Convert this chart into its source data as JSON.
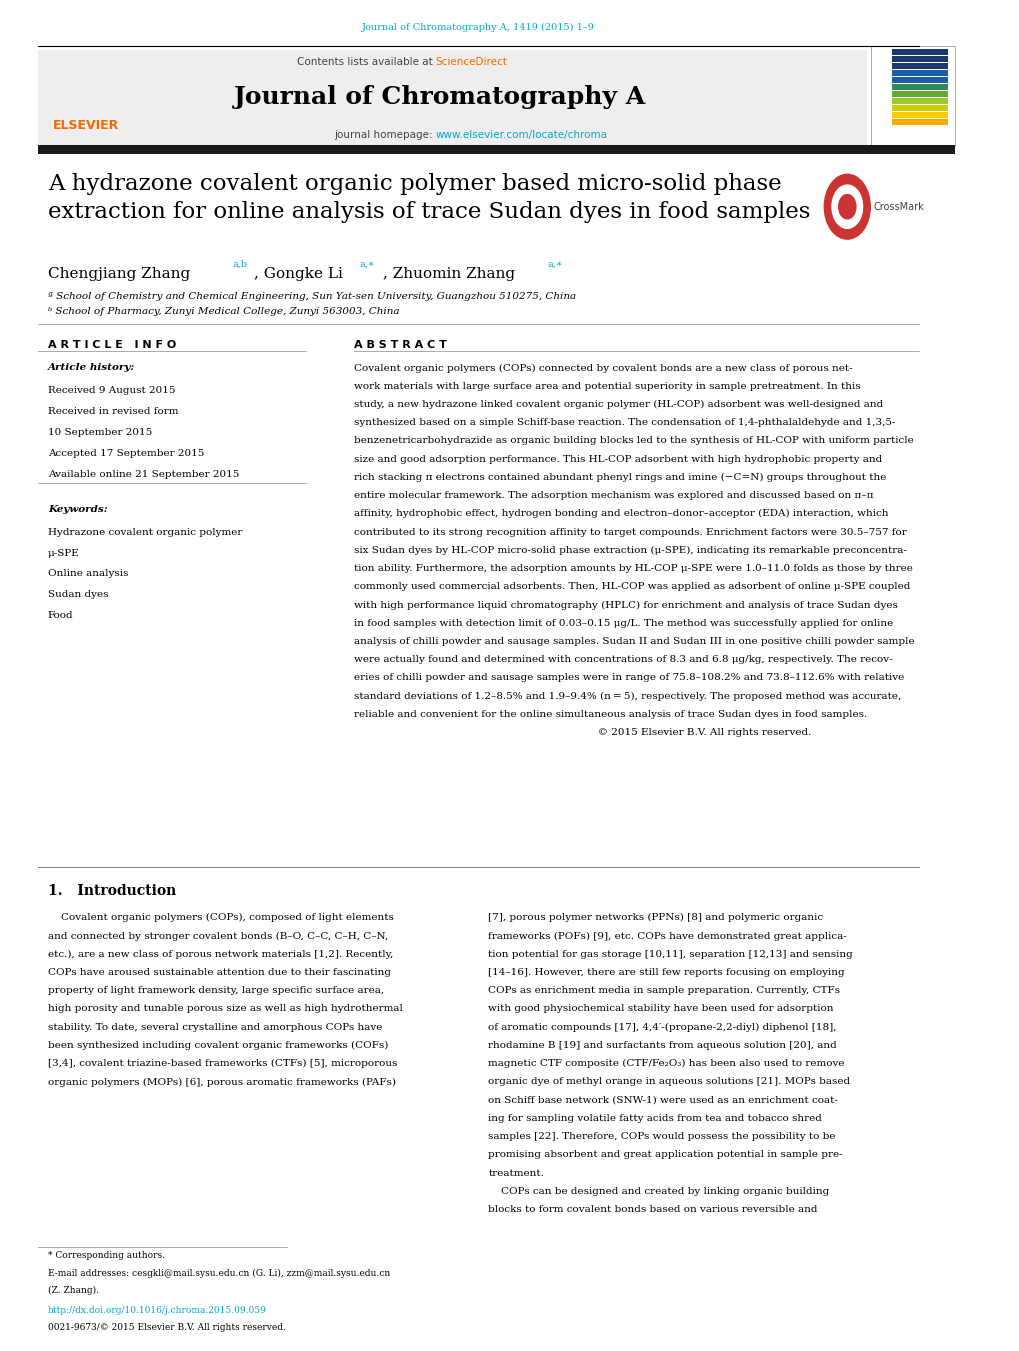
{
  "page_width": 10.2,
  "page_height": 13.51,
  "background_color": "#ffffff",
  "top_journal_ref": "Journal of Chromatography A, 1419 (2015) 1–9",
  "top_journal_ref_color": "#00aacc",
  "journal_name": "Journal of Chromatography A",
  "journal_homepage_url": "www.elsevier.com/locate/chroma",
  "journal_homepage_url_color": "#00aacc",
  "article_title": "A hydrazone covalent organic polymer based micro-solid phase\nextraction for online analysis of trace Sudan dyes in food samples",
  "affil_a": "ª School of Chemistry and Chemical Engineering, Sun Yat-sen University, Guangzhou 510275, China",
  "affil_b": "ᵇ School of Pharmacy, Zunyi Medical College, Zunyi 563003, China",
  "article_info_header": "A R T I C L E   I N F O",
  "abstract_header": "A B S T R A C T",
  "article_history_label": "Article history:",
  "received1": "Received 9 August 2015",
  "received2": "Received in revised form",
  "received2b": "10 September 2015",
  "accepted": "Accepted 17 September 2015",
  "available": "Available online 21 September 2015",
  "keywords_label": "Keywords:",
  "keyword1": "Hydrazone covalent organic polymer",
  "keyword2": "μ-SPE",
  "keyword3": "Online analysis",
  "keyword4": "Sudan dyes",
  "keyword5": "Food",
  "abstract_text": "Covalent organic polymers (COPs) connected by covalent bonds are a new class of porous net-\nwork materials with large surface area and potential superiority in sample pretreatment. In this\nstudy, a new hydrazone linked covalent organic polymer (HL-COP) adsorbent was well-designed and\nsynthesized based on a simple Schiff-base reaction. The condensation of 1,4-phthalaldehyde and 1,3,5-\nbenzenetricarbohydrazide as organic building blocks led to the synthesis of HL-COP with uniform particle\nsize and good adsorption performance. This HL-COP adsorbent with high hydrophobic property and\nrich stacking π electrons contained abundant phenyl rings and imine (−C=N) groups throughout the\nentire molecular framework. The adsorption mechanism was explored and discussed based on π–π\naffinity, hydrophobic effect, hydrogen bonding and electron–donor–acceptor (EDA) interaction, which\ncontributed to its strong recognition affinity to target compounds. Enrichment factors were 30.5–757 for\nsix Sudan dyes by HL-COP micro-solid phase extraction (μ-SPE), indicating its remarkable preconcentra-\ntion ability. Furthermore, the adsorption amounts by HL-COP μ-SPE were 1.0–11.0 folds as those by three\ncommonly used commercial adsorbents. Then, HL-COP was applied as adsorbent of online μ-SPE coupled\nwith high performance liquid chromatography (HPLC) for enrichment and analysis of trace Sudan dyes\nin food samples with detection limit of 0.03–0.15 μg/L. The method was successfully applied for online\nanalysis of chilli powder and sausage samples. Sudan II and Sudan III in one positive chilli powder sample\nwere actually found and determined with concentrations of 8.3 and 6.8 μg/kg, respectively. The recov-\neries of chilli powder and sausage samples were in range of 75.8–108.2% and 73.8–112.6% with relative\nstandard deviations of 1.2–8.5% and 1.9–9.4% (n = 5), respectively. The proposed method was accurate,\nreliable and convenient for the online simultaneous analysis of trace Sudan dyes in food samples.\n                                                                           © 2015 Elsevier B.V. All rights reserved.",
  "intro_header": "1.   Introduction",
  "intro_col1_lines": [
    "    Covalent organic polymers (COPs), composed of light elements",
    "and connected by stronger covalent bonds (B–O, C–C, C–H, C–N,",
    "etc.), are a new class of porous network materials [1,2]. Recently,",
    "COPs have aroused sustainable attention due to their fascinating",
    "property of light framework density, large specific surface area,",
    "high porosity and tunable porous size as well as high hydrothermal",
    "stability. To date, several crystalline and amorphous COPs have",
    "been synthesized including covalent organic frameworks (COFs)",
    "[3,4], covalent triazine-based frameworks (CTFs) [5], microporous",
    "organic polymers (MOPs) [6], porous aromatic frameworks (PAFs)"
  ],
  "intro_col2_lines": [
    "[7], porous polymer networks (PPNs) [8] and polymeric organic",
    "frameworks (POFs) [9], etc. COPs have demonstrated great applica-",
    "tion potential for gas storage [10,11], separation [12,13] and sensing",
    "[14–16]. However, there are still few reports focusing on employing",
    "COPs as enrichment media in sample preparation. Currently, CTFs",
    "with good physiochemical stability have been used for adsorption",
    "of aromatic compounds [17], 4,4′-(propane-2,2-diyl) diphenol [18],",
    "rhodamine B [19] and surfactants from aqueous solution [20], and",
    "magnetic CTF composite (CTF/Fe₂O₃) has been also used to remove",
    "organic dye of methyl orange in aqueous solutions [21]. MOPs based",
    "on Schiff base network (SNW-1) were used as an enrichment coat-",
    "ing for sampling volatile fatty acids from tea and tobacco shred",
    "samples [22]. Therefore, COPs would possess the possibility to be",
    "promising absorbent and great application potential in sample pre-",
    "treatment.",
    "    COPs can be designed and created by linking organic building",
    "blocks to form covalent bonds based on various reversible and"
  ],
  "footer_corresp": "* Corresponding authors.",
  "footer_email": "E-mail addresses: cesgkli@mail.sysu.edu.cn (G. Li), zzm@mail.sysu.edu.cn",
  "footer_email2": "(Z. Zhang).",
  "footer_doi": "http://dx.doi.org/10.1016/j.chroma.2015.09.059",
  "footer_issn": "0021-9673/© 2015 Elsevier B.V. All rights reserved.",
  "link_color": "#00aacc",
  "elsevier_orange": "#ff6600",
  "science_direct_color": "#ff6600",
  "bar_colors_cover": [
    "#1a3a6b",
    "#1a3a6b",
    "#1a3a6b",
    "#1a5ca8",
    "#1a5ca8",
    "#2e8b57",
    "#66aa33",
    "#99cc33",
    "#cccc00",
    "#ffcc00",
    "#ffaa00"
  ]
}
